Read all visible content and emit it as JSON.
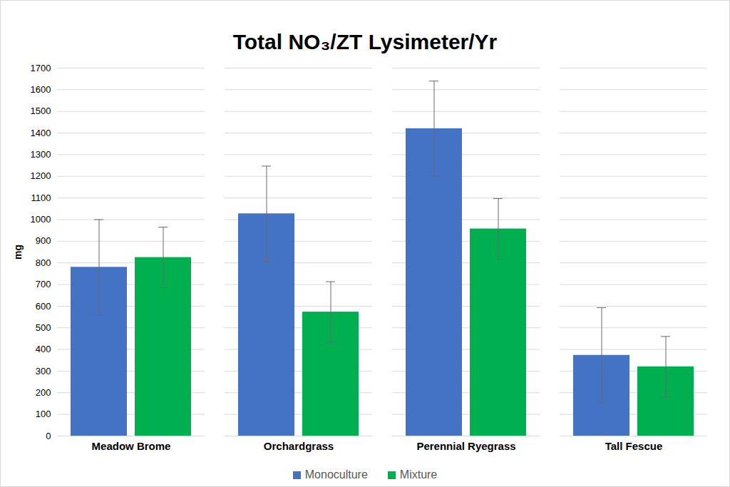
{
  "chart_data": {
    "type": "bar",
    "title": "Total NO₃/ZT Lysimeter/Yr",
    "ylabel": "mg",
    "categories": [
      "Meadow Brome",
      "Orchardgrass",
      "Perennial Ryegrass",
      "Tall Fescue"
    ],
    "series": [
      {
        "name": "Monoculture",
        "color": "#4472c4",
        "values": [
          780,
          1027,
          1420,
          373
        ],
        "errors": [
          220,
          220,
          220,
          220
        ]
      },
      {
        "name": "Mixture",
        "color": "#00b050",
        "values": [
          825,
          573,
          957,
          320
        ],
        "errors": [
          140,
          140,
          140,
          140
        ]
      }
    ],
    "ylim": [
      0,
      1700
    ],
    "yticks": [
      0,
      100,
      200,
      300,
      400,
      500,
      600,
      700,
      800,
      900,
      1000,
      1100,
      1200,
      1300,
      1400,
      1500,
      1600,
      1700
    ],
    "grid": true,
    "legend": "bottom"
  }
}
